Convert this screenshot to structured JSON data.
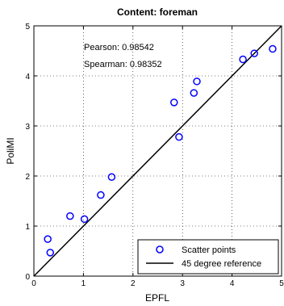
{
  "chart_data": {
    "type": "scatter",
    "title": "Content: foreman",
    "xlabel": "EPFL",
    "ylabel": "PoliMI",
    "xlim": [
      0,
      5
    ],
    "ylim": [
      0,
      5
    ],
    "xticks": [
      "0",
      "1",
      "2",
      "3",
      "4",
      "5"
    ],
    "yticks": [
      "0",
      "1",
      "2",
      "3",
      "4",
      "5"
    ],
    "grid": true,
    "annotations": [
      "Pearson: 0.98542",
      "Spearman: 0.98352"
    ],
    "legend": {
      "placement": "bottom-right",
      "entries": [
        "Scatter points",
        "45 degree reference"
      ]
    },
    "series": [
      {
        "name": "Scatter points",
        "kind": "scatter",
        "color": "#0000ff",
        "points": [
          {
            "x": 0.28,
            "y": 0.74
          },
          {
            "x": 0.33,
            "y": 0.47
          },
          {
            "x": 0.73,
            "y": 1.2
          },
          {
            "x": 1.02,
            "y": 1.14
          },
          {
            "x": 1.35,
            "y": 1.62
          },
          {
            "x": 1.57,
            "y": 1.98
          },
          {
            "x": 2.83,
            "y": 3.47
          },
          {
            "x": 2.93,
            "y": 2.78
          },
          {
            "x": 3.23,
            "y": 3.66
          },
          {
            "x": 3.29,
            "y": 3.89
          },
          {
            "x": 4.22,
            "y": 4.33
          },
          {
            "x": 4.45,
            "y": 4.45
          },
          {
            "x": 4.82,
            "y": 4.54
          }
        ]
      },
      {
        "name": "45 degree reference",
        "kind": "line",
        "color": "#000000",
        "points": [
          {
            "x": 0,
            "y": 0
          },
          {
            "x": 5,
            "y": 5
          }
        ]
      }
    ]
  }
}
